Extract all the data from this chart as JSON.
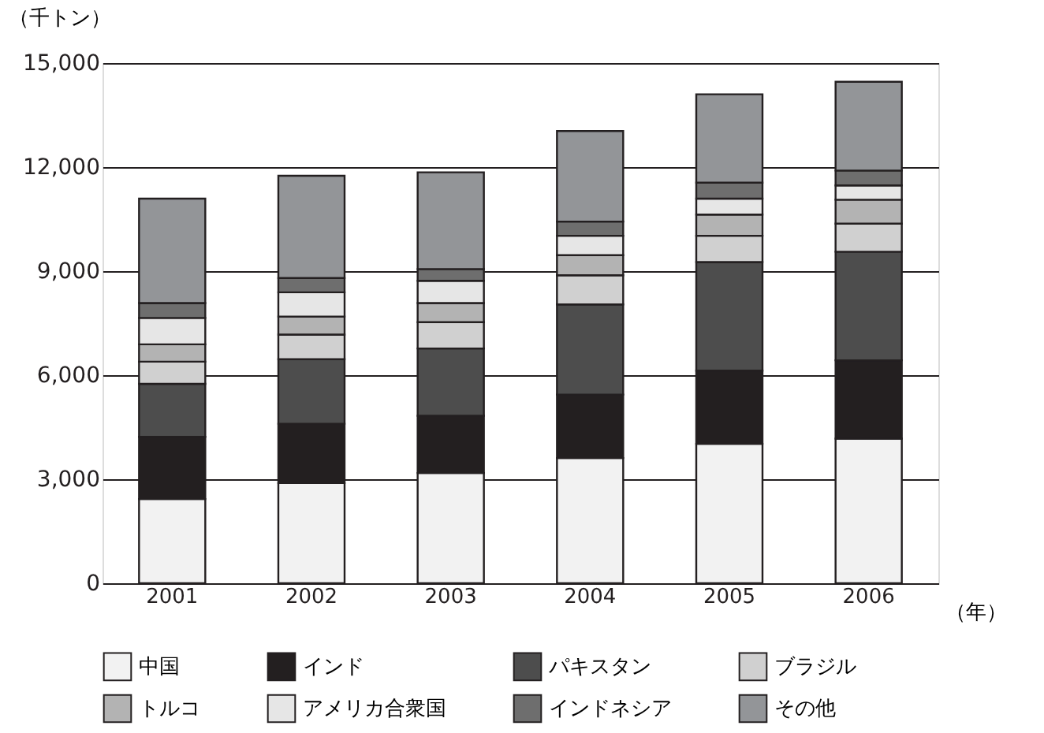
{
  "chart_data": {
    "type": "bar",
    "stacked": true,
    "ylabel": "（千トン）",
    "xlabel": "（年）",
    "categories": [
      "2001",
      "2002",
      "2003",
      "2004",
      "2005",
      "2006"
    ],
    "series": [
      {
        "name": "中国",
        "color": "#f2f2f2",
        "values": [
          2430,
          2890,
          3180,
          3610,
          4020,
          4170
        ]
      },
      {
        "name": "インド",
        "color": "#231f20",
        "values": [
          1790,
          1710,
          1650,
          1830,
          2110,
          2260
        ]
      },
      {
        "name": "パキスタン",
        "color": "#4d4d4d",
        "values": [
          1530,
          1860,
          1940,
          2600,
          3130,
          3130
        ]
      },
      {
        "name": "ブラジル",
        "color": "#d0d0d0",
        "values": [
          640,
          710,
          760,
          840,
          760,
          810
        ]
      },
      {
        "name": "トルコ",
        "color": "#b3b3b3",
        "values": [
          500,
          520,
          550,
          580,
          610,
          690
        ]
      },
      {
        "name": "アメリカ合衆国",
        "color": "#e6e6e6",
        "values": [
          760,
          700,
          640,
          560,
          460,
          410
        ]
      },
      {
        "name": "インドネシア",
        "color": "#6e6e6e",
        "values": [
          430,
          410,
          340,
          410,
          460,
          430
        ]
      },
      {
        "name": "その他",
        "color": "#939598",
        "values": [
          3010,
          2950,
          2790,
          2610,
          2550,
          2560
        ]
      }
    ],
    "ylim": [
      0,
      15000
    ],
    "yticks": [
      0,
      {
        "value": 3000,
        "label": "3,000"
      },
      {
        "value": 6000,
        "label": "6,000"
      },
      {
        "value": 9000,
        "label": "9,000"
      },
      {
        "value": 12000,
        "label": "12,000"
      },
      {
        "value": 15000,
        "label": "15,000"
      }
    ],
    "grid": "y",
    "legend": "bottom"
  }
}
